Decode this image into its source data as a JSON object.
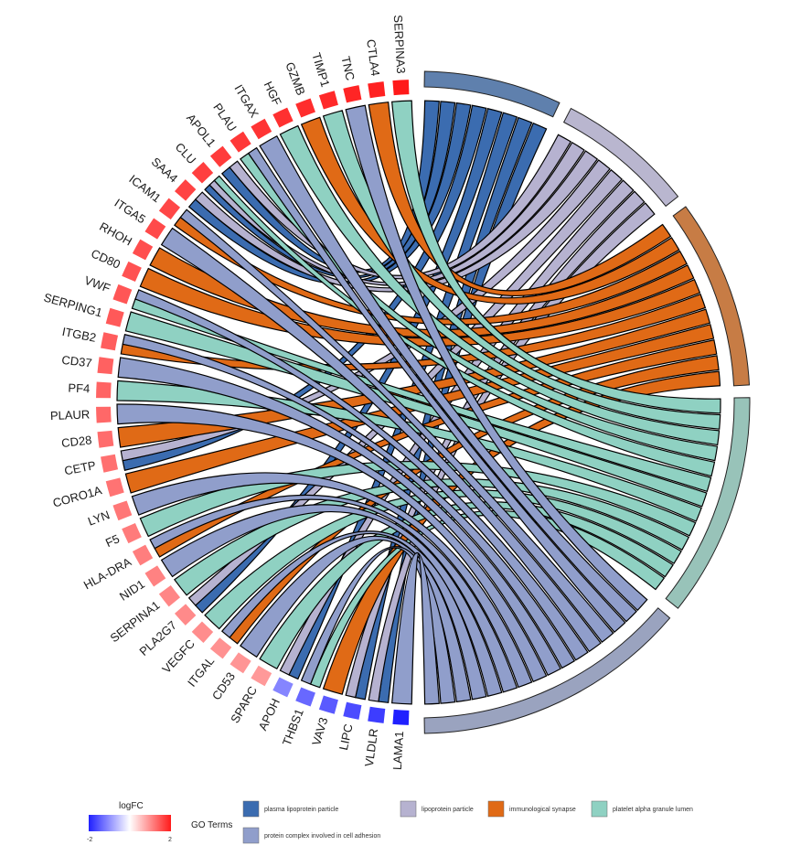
{
  "chart_data": {
    "type": "chord",
    "genes": [
      {
        "name": "SERPINA3",
        "logFC": 2.0,
        "terms": [
          "platelet alpha granule lumen"
        ]
      },
      {
        "name": "CTLA4",
        "logFC": 1.9,
        "terms": [
          "immunological synapse"
        ]
      },
      {
        "name": "TNC",
        "logFC": 1.85,
        "terms": [
          "protein complex involved in cell adhesion"
        ]
      },
      {
        "name": "TIMP1",
        "logFC": 1.8,
        "terms": [
          "platelet alpha granule lumen"
        ]
      },
      {
        "name": "GZMB",
        "logFC": 1.75,
        "terms": [
          "immunological synapse"
        ]
      },
      {
        "name": "HGF",
        "logFC": 1.7,
        "terms": [
          "platelet alpha granule lumen"
        ]
      },
      {
        "name": "ITGAX",
        "logFC": 1.65,
        "terms": [
          "protein complex involved in cell adhesion"
        ]
      },
      {
        "name": "PLAU",
        "logFC": 1.6,
        "terms": [
          "platelet alpha granule lumen",
          "protein complex involved in cell adhesion"
        ]
      },
      {
        "name": "APOL1",
        "logFC": 1.55,
        "terms": [
          "plasma lipoprotein particle",
          "lipoprotein particle"
        ]
      },
      {
        "name": "CLU",
        "logFC": 1.5,
        "terms": [
          "plasma lipoprotein particle",
          "lipoprotein particle",
          "platelet alpha granule lumen"
        ]
      },
      {
        "name": "SAA4",
        "logFC": 1.45,
        "terms": [
          "plasma lipoprotein particle",
          "lipoprotein particle"
        ]
      },
      {
        "name": "ICAM1",
        "logFC": 1.4,
        "terms": [
          "immunological synapse",
          "protein complex involved in cell adhesion"
        ]
      },
      {
        "name": "ITGA5",
        "logFC": 1.35,
        "terms": [
          "protein complex involved in cell adhesion"
        ]
      },
      {
        "name": "RHOH",
        "logFC": 1.3,
        "terms": [
          "immunological synapse"
        ]
      },
      {
        "name": "CD80",
        "logFC": 1.25,
        "terms": [
          "immunological synapse"
        ]
      },
      {
        "name": "VWF",
        "logFC": 1.2,
        "terms": [
          "platelet alpha granule lumen",
          "protein complex involved in cell adhesion"
        ]
      },
      {
        "name": "SERPING1",
        "logFC": 1.15,
        "terms": [
          "platelet alpha granule lumen"
        ]
      },
      {
        "name": "ITGB2",
        "logFC": 1.1,
        "terms": [
          "immunological synapse",
          "protein complex involved in cell adhesion"
        ]
      },
      {
        "name": "CD37",
        "logFC": 1.05,
        "terms": [
          "protein complex involved in cell adhesion"
        ]
      },
      {
        "name": "PF4",
        "logFC": 1.0,
        "terms": [
          "platelet alpha granule lumen"
        ]
      },
      {
        "name": "PLAUR",
        "logFC": 0.95,
        "terms": [
          "protein complex involved in cell adhesion"
        ]
      },
      {
        "name": "CD28",
        "logFC": 0.9,
        "terms": [
          "immunological synapse"
        ]
      },
      {
        "name": "CETP",
        "logFC": 0.85,
        "terms": [
          "plasma lipoprotein particle",
          "lipoprotein particle"
        ]
      },
      {
        "name": "CORO1A",
        "logFC": 0.8,
        "terms": [
          "immunological synapse"
        ]
      },
      {
        "name": "LYN",
        "logFC": 0.75,
        "terms": [
          "protein complex involved in cell adhesion"
        ]
      },
      {
        "name": "F5",
        "logFC": 0.7,
        "terms": [
          "platelet alpha granule lumen"
        ]
      },
      {
        "name": "HLA-DRA",
        "logFC": 0.65,
        "terms": [
          "immunological synapse",
          "protein complex involved in cell adhesion"
        ]
      },
      {
        "name": "NID1",
        "logFC": 0.6,
        "terms": [
          "protein complex involved in cell adhesion"
        ]
      },
      {
        "name": "SERPINA1",
        "logFC": 0.55,
        "terms": [
          "platelet alpha granule lumen"
        ]
      },
      {
        "name": "PLA2G7",
        "logFC": 0.5,
        "terms": [
          "plasma lipoprotein particle",
          "lipoprotein particle"
        ]
      },
      {
        "name": "VEGFC",
        "logFC": 0.45,
        "terms": [
          "platelet alpha granule lumen"
        ]
      },
      {
        "name": "ITGAL",
        "logFC": 0.4,
        "terms": [
          "immunological synapse",
          "protein complex involved in cell adhesion"
        ]
      },
      {
        "name": "CD53",
        "logFC": 0.35,
        "terms": [
          "protein complex involved in cell adhesion"
        ]
      },
      {
        "name": "SPARC",
        "logFC": 0.3,
        "terms": [
          "platelet alpha granule lumen"
        ]
      },
      {
        "name": "APOH",
        "logFC": -0.6,
        "terms": [
          "plasma lipoprotein particle",
          "lipoprotein particle"
        ]
      },
      {
        "name": "THBS1",
        "logFC": -1.0,
        "terms": [
          "platelet alpha granule lumen",
          "protein complex involved in cell adhesion"
        ]
      },
      {
        "name": "VAV3",
        "logFC": -1.2,
        "terms": [
          "immunological synapse"
        ]
      },
      {
        "name": "LIPC",
        "logFC": -1.4,
        "terms": [
          "plasma lipoprotein particle",
          "lipoprotein particle"
        ]
      },
      {
        "name": "VLDLR",
        "logFC": -1.6,
        "terms": [
          "plasma lipoprotein particle",
          "lipoprotein particle"
        ]
      },
      {
        "name": "LAMA1",
        "logFC": -2.0,
        "terms": [
          "protein complex involved in cell adhesion"
        ]
      }
    ],
    "terms": [
      {
        "name": "plasma lipoprotein particle",
        "color": "#3b6cb0"
      },
      {
        "name": "lipoprotein particle",
        "color": "#b6b2d0"
      },
      {
        "name": "immunological synapse",
        "color": "#e06a16"
      },
      {
        "name": "platelet alpha granule lumen",
        "color": "#8fd1c2"
      },
      {
        "name": "protein complex involved in cell adhesion",
        "color": "#909ecb"
      }
    ],
    "term_arc_order": [
      "plasma lipoprotein particle",
      "lipoprotein particle",
      "immunological synapse",
      "platelet alpha granule lumen",
      "protein complex involved in cell adhesion"
    ],
    "term_arc_colors": [
      "#5f80ad",
      "#b9b6cf",
      "#c77c45",
      "#98c3b9",
      "#9aa3bf"
    ],
    "logfc_scale": {
      "low": "#2020ff",
      "mid": "#ffffff",
      "high": "#ff1a1a",
      "min": -2,
      "max": 2
    }
  },
  "legend": {
    "logfc_title": "logFC",
    "logfc_min_label": "-2",
    "logfc_max_label": "2",
    "go_title": "GO Terms",
    "items": [
      {
        "label": "plasma lipoprotein particle",
        "color": "#3b6cb0"
      },
      {
        "label": "lipoprotein particle",
        "color": "#b6b2d0"
      },
      {
        "label": "immunological synapse",
        "color": "#e06a16"
      },
      {
        "label": "platelet alpha granule lumen",
        "color": "#8fd1c2"
      },
      {
        "label": "protein complex involved in cell adhesion",
        "color": "#909ecb"
      }
    ]
  }
}
